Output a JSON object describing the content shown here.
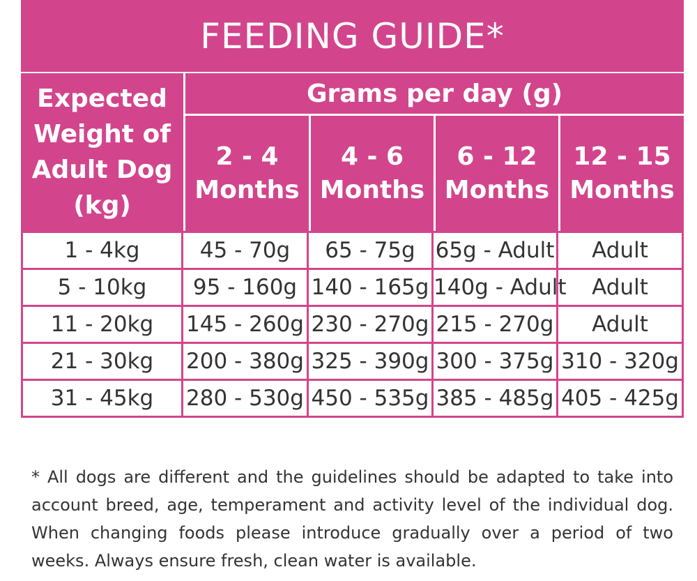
{
  "title": "FEEDING GUIDE*",
  "header": {
    "weight_line1": "Expected",
    "weight_line2": "Weight of",
    "weight_line3": "Adult Dog",
    "weight_line4": "(kg)",
    "grams": "Grams per day (g)",
    "ages": [
      {
        "range": "2 - 4",
        "unit": "Months"
      },
      {
        "range": "4 - 6",
        "unit": "Months"
      },
      {
        "range": "6 - 12",
        "unit": "Months"
      },
      {
        "range": "12 - 15",
        "unit": "Months"
      }
    ]
  },
  "rows": [
    {
      "weight": "1 - 4kg",
      "cells": [
        "45 - 70g",
        "65 - 75g",
        "65g - Adult",
        "Adult"
      ]
    },
    {
      "weight": "5 - 10kg",
      "cells": [
        "95 - 160g",
        "140 - 165g",
        "140g - Adult",
        "Adult"
      ]
    },
    {
      "weight": "11 - 20kg",
      "cells": [
        "145 - 260g",
        "230 - 270g",
        "215 - 270g",
        "Adult"
      ]
    },
    {
      "weight": "21 - 30kg",
      "cells": [
        "200 - 380g",
        "325 - 390g",
        "300 - 375g",
        "310 - 320g"
      ]
    },
    {
      "weight": "31 - 45kg",
      "cells": [
        "280 - 530g",
        "450 - 535g",
        "385 - 485g",
        "405 - 425g"
      ]
    }
  ],
  "footnote": "* All dogs are different and the guidelines should be adapted to take into account breed, age, temperament and activity level of the individual dog. When changing foods please introduce gradually over a period of two weeks. Always ensure fresh, clean water is available.",
  "colors": {
    "accent": "#d2458c",
    "text": "#333333",
    "header_text": "#ffffff"
  }
}
